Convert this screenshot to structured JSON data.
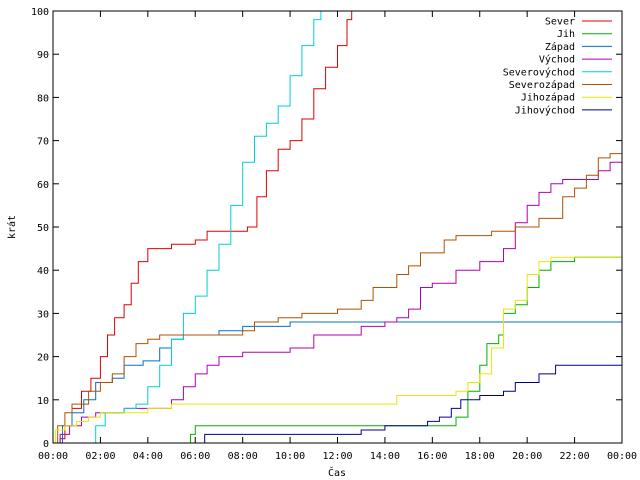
{
  "chart_data": {
    "type": "line",
    "xlabel": "Čas",
    "ylabel": "krát",
    "xlim": [
      0,
      24
    ],
    "ylim": [
      0,
      100
    ],
    "yticks": [
      0,
      10,
      20,
      30,
      40,
      50,
      60,
      70,
      80,
      90,
      100
    ],
    "xticks": [
      {
        "value": 0,
        "label": "00:00"
      },
      {
        "value": 2,
        "label": "02:00"
      },
      {
        "value": 4,
        "label": "04:00"
      },
      {
        "value": 6,
        "label": "06:00"
      },
      {
        "value": 8,
        "label": "08:00"
      },
      {
        "value": 10,
        "label": "10:00"
      },
      {
        "value": 12,
        "label": "12:00"
      },
      {
        "value": 14,
        "label": "14:00"
      },
      {
        "value": 16,
        "label": "16:00"
      },
      {
        "value": 18,
        "label": "18:00"
      },
      {
        "value": 20,
        "label": "20:00"
      },
      {
        "value": 22,
        "label": "22:00"
      },
      {
        "value": 24,
        "label": "00:00"
      }
    ],
    "grid": false,
    "legend_position": "top-right",
    "series": [
      {
        "name": "Sever",
        "color": "#e00000",
        "points": [
          [
            0,
            0
          ],
          [
            0.3,
            1
          ],
          [
            0.5,
            4
          ],
          [
            0.8,
            8
          ],
          [
            1.2,
            12
          ],
          [
            1.6,
            15
          ],
          [
            2.0,
            20
          ],
          [
            2.3,
            25
          ],
          [
            2.6,
            29
          ],
          [
            3.0,
            32
          ],
          [
            3.3,
            37
          ],
          [
            3.6,
            42
          ],
          [
            4.0,
            45
          ],
          [
            5.0,
            46
          ],
          [
            6.0,
            47
          ],
          [
            6.5,
            49
          ],
          [
            7.5,
            49
          ],
          [
            8.2,
            50
          ],
          [
            8.6,
            57
          ],
          [
            9.0,
            63
          ],
          [
            9.5,
            68
          ],
          [
            10.0,
            70
          ],
          [
            10.5,
            75
          ],
          [
            11.0,
            82
          ],
          [
            11.5,
            87
          ],
          [
            12.0,
            92
          ],
          [
            12.4,
            98
          ],
          [
            12.6,
            100
          ]
        ]
      },
      {
        "name": "Jih",
        "color": "#00b000",
        "points": [
          [
            0,
            0
          ],
          [
            5.7,
            0
          ],
          [
            5.8,
            2
          ],
          [
            6.0,
            4
          ],
          [
            12.0,
            4
          ],
          [
            14.0,
            4
          ],
          [
            15.5,
            4
          ],
          [
            16.5,
            4
          ],
          [
            17.0,
            6
          ],
          [
            17.5,
            12
          ],
          [
            18.0,
            18
          ],
          [
            18.3,
            23
          ],
          [
            18.8,
            25
          ],
          [
            19.0,
            30
          ],
          [
            19.5,
            32
          ],
          [
            20.0,
            36
          ],
          [
            20.5,
            40
          ],
          [
            21.0,
            42
          ],
          [
            22.0,
            43
          ],
          [
            24,
            45
          ]
        ]
      },
      {
        "name": "Západ",
        "color": "#0070d0",
        "points": [
          [
            0,
            0
          ],
          [
            0.4,
            4
          ],
          [
            0.8,
            7
          ],
          [
            1.3,
            10
          ],
          [
            1.8,
            14
          ],
          [
            2.5,
            15
          ],
          [
            3.0,
            18
          ],
          [
            3.8,
            19
          ],
          [
            4.5,
            22
          ],
          [
            5.0,
            24
          ],
          [
            5.5,
            25
          ],
          [
            6.5,
            25
          ],
          [
            7.0,
            26
          ],
          [
            8.0,
            27
          ],
          [
            9.5,
            27
          ],
          [
            10.0,
            28
          ],
          [
            24,
            28
          ]
        ]
      },
      {
        "name": "Východ",
        "color": "#b000b0",
        "points": [
          [
            0,
            0
          ],
          [
            0.3,
            2
          ],
          [
            0.7,
            4
          ],
          [
            1.2,
            6
          ],
          [
            1.8,
            7
          ],
          [
            2.5,
            7
          ],
          [
            3.0,
            8
          ],
          [
            4.5,
            8
          ],
          [
            5.0,
            10
          ],
          [
            5.5,
            13
          ],
          [
            6.0,
            16
          ],
          [
            6.5,
            18
          ],
          [
            7.0,
            20
          ],
          [
            8.0,
            21
          ],
          [
            9.0,
            21
          ],
          [
            10.0,
            22
          ],
          [
            11.0,
            25
          ],
          [
            12.0,
            25
          ],
          [
            13.0,
            27
          ],
          [
            14.0,
            28
          ],
          [
            14.5,
            29
          ],
          [
            15.0,
            31
          ],
          [
            15.5,
            36
          ],
          [
            16.0,
            37
          ],
          [
            17.0,
            40
          ],
          [
            18.0,
            42
          ],
          [
            19.0,
            45
          ],
          [
            19.5,
            51
          ],
          [
            20.0,
            55
          ],
          [
            20.5,
            58
          ],
          [
            21.0,
            60
          ],
          [
            21.5,
            61
          ],
          [
            23.0,
            63
          ],
          [
            23.5,
            65
          ],
          [
            24,
            67
          ]
        ]
      },
      {
        "name": "Severovýchod",
        "color": "#00d0d0",
        "points": [
          [
            0,
            0
          ],
          [
            1.5,
            0
          ],
          [
            1.8,
            4
          ],
          [
            2.2,
            7
          ],
          [
            3.0,
            8
          ],
          [
            3.5,
            9
          ],
          [
            4.0,
            13
          ],
          [
            4.5,
            18
          ],
          [
            5.0,
            24
          ],
          [
            5.5,
            30
          ],
          [
            6.0,
            34
          ],
          [
            6.5,
            40
          ],
          [
            7.0,
            46
          ],
          [
            7.5,
            55
          ],
          [
            8.0,
            65
          ],
          [
            8.5,
            71
          ],
          [
            9.0,
            74
          ],
          [
            9.5,
            78
          ],
          [
            10.0,
            85
          ],
          [
            10.5,
            92
          ],
          [
            11.0,
            98
          ],
          [
            11.3,
            100
          ]
        ]
      },
      {
        "name": "Severozápad",
        "color": "#b05000",
        "points": [
          [
            0,
            0
          ],
          [
            0.2,
            4
          ],
          [
            0.5,
            7
          ],
          [
            0.8,
            9
          ],
          [
            1.5,
            12
          ],
          [
            2.0,
            14
          ],
          [
            2.5,
            16
          ],
          [
            3.0,
            20
          ],
          [
            3.5,
            23
          ],
          [
            4.0,
            24
          ],
          [
            4.5,
            25
          ],
          [
            7.5,
            25
          ],
          [
            8.0,
            26
          ],
          [
            8.5,
            28
          ],
          [
            9.5,
            29
          ],
          [
            10.5,
            30
          ],
          [
            12.0,
            31
          ],
          [
            13.0,
            33
          ],
          [
            13.5,
            36
          ],
          [
            14.5,
            39
          ],
          [
            15.0,
            41
          ],
          [
            15.5,
            44
          ],
          [
            16.5,
            47
          ],
          [
            17.0,
            48
          ],
          [
            18.5,
            49
          ],
          [
            19.5,
            50
          ],
          [
            20.5,
            52
          ],
          [
            21.5,
            57
          ],
          [
            22.0,
            59
          ],
          [
            22.5,
            62
          ],
          [
            23.0,
            66
          ],
          [
            23.5,
            67
          ],
          [
            24,
            69
          ]
        ]
      },
      {
        "name": "Jihozápad",
        "color": "#e8e800",
        "points": [
          [
            0,
            0
          ],
          [
            0.1,
            3
          ],
          [
            0.5,
            4
          ],
          [
            1.0,
            5
          ],
          [
            1.5,
            6
          ],
          [
            2.0,
            7
          ],
          [
            3.0,
            7
          ],
          [
            4.0,
            8
          ],
          [
            5.0,
            9
          ],
          [
            12.0,
            9
          ],
          [
            14.0,
            9
          ],
          [
            14.5,
            11
          ],
          [
            16.5,
            11
          ],
          [
            17.0,
            12
          ],
          [
            17.5,
            14
          ],
          [
            18.0,
            16
          ],
          [
            18.5,
            22
          ],
          [
            19.0,
            31
          ],
          [
            19.5,
            33
          ],
          [
            20.0,
            39
          ],
          [
            20.5,
            42
          ],
          [
            21.0,
            43
          ],
          [
            24,
            43
          ]
        ]
      },
      {
        "name": "Jihovýchod",
        "color": "#000090",
        "points": [
          [
            0,
            0
          ],
          [
            6.2,
            0
          ],
          [
            6.4,
            2
          ],
          [
            12.0,
            2
          ],
          [
            13.0,
            3
          ],
          [
            14.0,
            4
          ],
          [
            15.0,
            4
          ],
          [
            15.8,
            5
          ],
          [
            16.3,
            6
          ],
          [
            16.8,
            8
          ],
          [
            17.2,
            10
          ],
          [
            18.0,
            11
          ],
          [
            18.5,
            11
          ],
          [
            19.0,
            12
          ],
          [
            19.5,
            14
          ],
          [
            20.5,
            16
          ],
          [
            21.2,
            18
          ],
          [
            24,
            18
          ]
        ]
      }
    ]
  }
}
